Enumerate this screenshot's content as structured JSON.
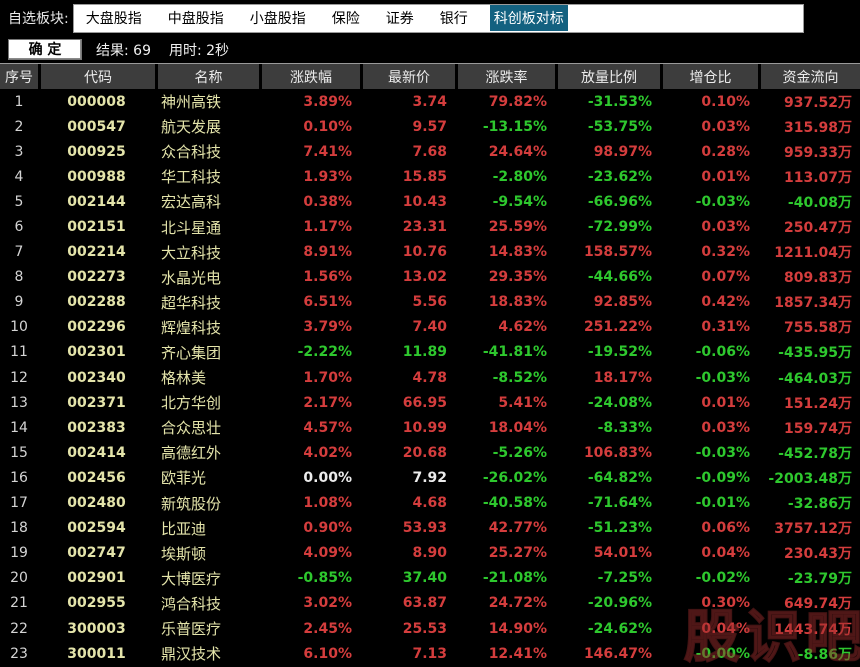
{
  "topbar": {
    "label": "自选板块:",
    "tabs": [
      {
        "label": "大盘股指",
        "active": false
      },
      {
        "label": "中盘股指",
        "active": false
      },
      {
        "label": "小盘股指",
        "active": false
      },
      {
        "label": "保险",
        "active": false
      },
      {
        "label": "证券",
        "active": false
      },
      {
        "label": "银行",
        "active": false
      },
      {
        "label": "科创板对标",
        "active": true
      }
    ]
  },
  "toolbar": {
    "confirm_label": "确 定",
    "result_label": "结果: 69",
    "time_label": "用时: 2秒"
  },
  "table": {
    "columns": [
      "序号",
      "代码",
      "名称",
      "涨跌幅",
      "最新价",
      "涨跌率",
      "放量比例",
      "增仓比",
      "资金流向"
    ],
    "rows": [
      [
        "1",
        "000008",
        "神州高铁",
        "3.89%",
        "3.74",
        "79.82%",
        "-31.53%",
        "0.10%",
        "937.52万"
      ],
      [
        "2",
        "000547",
        "航天发展",
        "0.10%",
        "9.57",
        "-13.15%",
        "-53.75%",
        "0.03%",
        "315.98万"
      ],
      [
        "3",
        "000925",
        "众合科技",
        "7.41%",
        "7.68",
        "24.64%",
        "98.97%",
        "0.28%",
        "959.33万"
      ],
      [
        "4",
        "000988",
        "华工科技",
        "1.93%",
        "15.85",
        "-2.80%",
        "-23.62%",
        "0.01%",
        "113.07万"
      ],
      [
        "5",
        "002144",
        "宏达高科",
        "0.38%",
        "10.43",
        "-9.54%",
        "-66.96%",
        "-0.03%",
        "-40.08万"
      ],
      [
        "6",
        "002151",
        "北斗星通",
        "1.17%",
        "23.31",
        "25.59%",
        "-72.99%",
        "0.03%",
        "250.47万"
      ],
      [
        "7",
        "002214",
        "大立科技",
        "8.91%",
        "10.76",
        "14.83%",
        "158.57%",
        "0.32%",
        "1211.04万"
      ],
      [
        "8",
        "002273",
        "水晶光电",
        "1.56%",
        "13.02",
        "29.35%",
        "-44.66%",
        "0.07%",
        "809.83万"
      ],
      [
        "9",
        "002288",
        "超华科技",
        "6.51%",
        "5.56",
        "18.83%",
        "92.85%",
        "0.42%",
        "1857.34万"
      ],
      [
        "10",
        "002296",
        "辉煌科技",
        "3.79%",
        "7.40",
        "4.62%",
        "251.22%",
        "0.31%",
        "755.58万"
      ],
      [
        "11",
        "002301",
        "齐心集团",
        "-2.22%",
        "11.89",
        "-41.81%",
        "-19.52%",
        "-0.06%",
        "-435.95万"
      ],
      [
        "12",
        "002340",
        "格林美",
        "1.70%",
        "4.78",
        "-8.52%",
        "18.17%",
        "-0.03%",
        "-464.03万"
      ],
      [
        "13",
        "002371",
        "北方华创",
        "2.17%",
        "66.95",
        "5.41%",
        "-24.08%",
        "0.01%",
        "151.24万"
      ],
      [
        "14",
        "002383",
        "合众思壮",
        "4.57%",
        "10.99",
        "18.04%",
        "-8.33%",
        "0.03%",
        "159.74万"
      ],
      [
        "15",
        "002414",
        "高德红外",
        "4.02%",
        "20.68",
        "-5.26%",
        "106.83%",
        "-0.03%",
        "-452.78万"
      ],
      [
        "16",
        "002456",
        "欧菲光",
        "0.00%",
        "7.92",
        "-26.02%",
        "-64.82%",
        "-0.09%",
        "-2003.48万"
      ],
      [
        "17",
        "002480",
        "新筑股份",
        "1.08%",
        "4.68",
        "-40.58%",
        "-71.64%",
        "-0.01%",
        "-32.86万"
      ],
      [
        "18",
        "002594",
        "比亚迪",
        "0.90%",
        "53.93",
        "42.77%",
        "-51.23%",
        "0.06%",
        "3757.12万"
      ],
      [
        "19",
        "002747",
        "埃斯顿",
        "4.09%",
        "8.90",
        "25.27%",
        "54.01%",
        "0.04%",
        "230.43万"
      ],
      [
        "20",
        "002901",
        "大博医疗",
        "-0.85%",
        "37.40",
        "-21.08%",
        "-7.25%",
        "-0.02%",
        "-23.79万"
      ],
      [
        "21",
        "002955",
        "鸿合科技",
        "3.02%",
        "63.87",
        "24.72%",
        "-20.96%",
        "0.30%",
        "649.74万"
      ],
      [
        "22",
        "300003",
        "乐普医疗",
        "2.45%",
        "25.53",
        "14.90%",
        "-24.62%",
        "0.04%",
        "1443.74万"
      ],
      [
        "23",
        "300011",
        "鼎汉技术",
        "6.10%",
        "7.13",
        "12.41%",
        "146.47%",
        "-0.00%",
        "-8.86万"
      ]
    ]
  },
  "watermark": "股识吧",
  "colors": {
    "up": "#d43d3d",
    "down": "#2ec82e",
    "code": "#e4e4aa",
    "active_tab_bg": "#136180"
  }
}
